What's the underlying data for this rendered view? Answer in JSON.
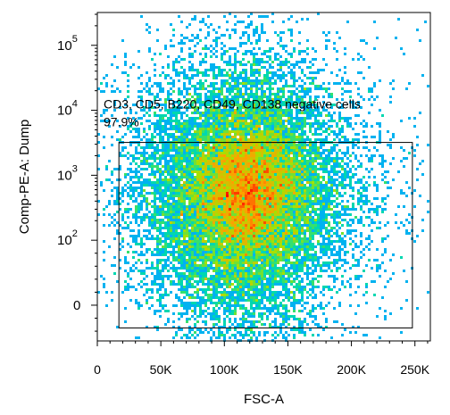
{
  "chart_data": {
    "type": "scatter",
    "subtype": "flow-cytometry-density-dot-plot",
    "xlabel": "FSC-A",
    "ylabel": "Comp-PE-A: Dump",
    "x_scale": "linear",
    "y_scale": "biexponential",
    "xlim": [
      0,
      262144
    ],
    "x_ticks": [
      {
        "value": 0,
        "label": "0"
      },
      {
        "value": 50000,
        "label": "50K"
      },
      {
        "value": 100000,
        "label": "100K"
      },
      {
        "value": 150000,
        "label": "150K"
      },
      {
        "value": 200000,
        "label": "200K"
      },
      {
        "value": 250000,
        "label": "250K"
      }
    ],
    "y_ticks": [
      {
        "value": 0,
        "label": "0",
        "base": "0",
        "exp": ""
      },
      {
        "value": 100,
        "label": "10^2",
        "base": "10",
        "exp": "2"
      },
      {
        "value": 1000,
        "label": "10^3",
        "base": "10",
        "exp": "3"
      },
      {
        "value": 10000,
        "label": "10^4",
        "base": "10",
        "exp": "4"
      },
      {
        "value": 100000,
        "label": "10^5",
        "base": "10",
        "exp": "5"
      }
    ],
    "density_colormap": [
      "#0000ff",
      "#00aaff",
      "#00e0a0",
      "#a8e000",
      "#ffa000",
      "#ff0000"
    ],
    "populations": [
      {
        "center": [
          115000,
          600
        ],
        "spread": [
          42000,
          0.55
        ],
        "count": 14000
      },
      {
        "center": [
          120000,
          650
        ],
        "spread": [
          20000,
          0.3
        ],
        "count": 4200
      },
      {
        "center": [
          110000,
          90
        ],
        "spread": [
          30000,
          0.5
        ],
        "count": 1800
      },
      {
        "center": [
          125000,
          30000
        ],
        "spread": [
          40000,
          0.35
        ],
        "count": 160
      }
    ],
    "gate": {
      "name": "CD3, CD5, B220, CD49, CD138 negative cells",
      "percent": "97.9%",
      "x_range": [
        17000,
        248000
      ],
      "y_range": [
        -35,
        3200
      ]
    },
    "grid": false,
    "legend": "none"
  }
}
